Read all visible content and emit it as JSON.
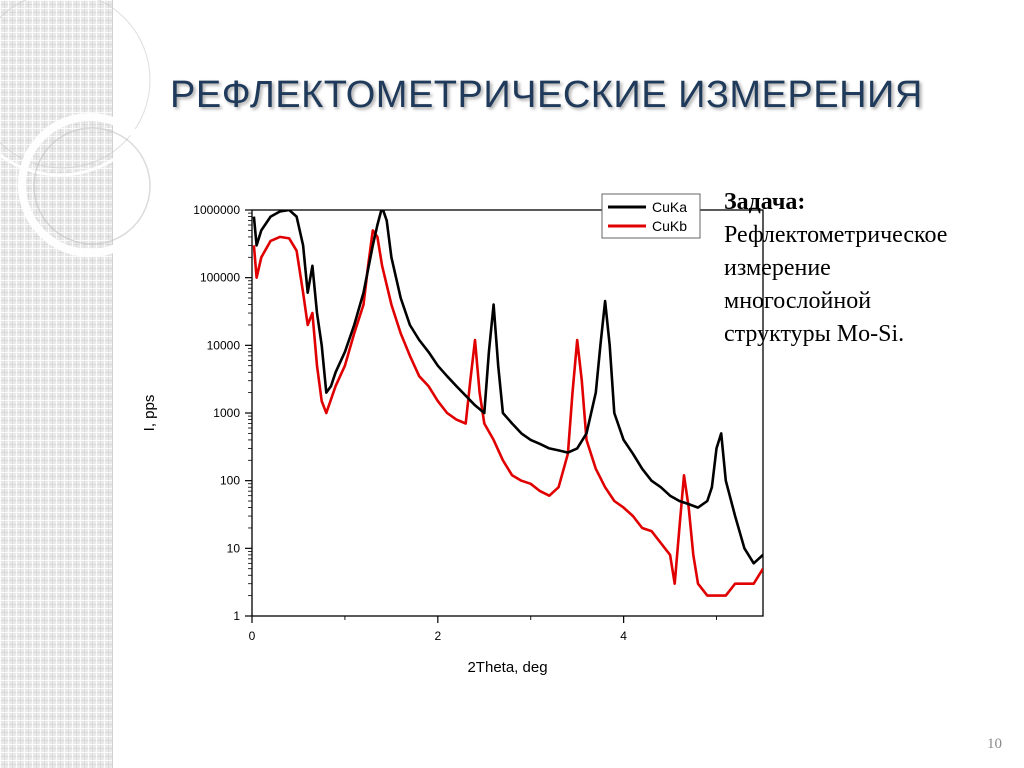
{
  "slide": {
    "title": "РЕФЛЕКТОМЕТРИЧЕСКИЕ ИЗМЕРЕНИЯ",
    "page_number": "10"
  },
  "task": {
    "heading": "Задача:",
    "lines": [
      "Рефлектометрическое",
      "измерение",
      "многослойной",
      "структуры Mo-Si."
    ]
  },
  "chart_data": {
    "type": "line",
    "title": "",
    "xlabel": "2Theta, deg",
    "ylabel": "I, pps",
    "xlim": [
      0,
      5.5
    ],
    "ylim": [
      1,
      1000000
    ],
    "yscale": "log",
    "grid": false,
    "legend_position": "top-right",
    "x_ticks": [
      0,
      2,
      4
    ],
    "x_tick_labels": [
      "0",
      "2",
      "4"
    ],
    "y_ticks": [
      1,
      10,
      100,
      1000,
      10000,
      100000,
      1000000
    ],
    "y_tick_labels": [
      "1",
      "10",
      "100",
      "1000",
      "10000",
      "100000",
      "1000000"
    ],
    "series": [
      {
        "name": "CuKa",
        "color": "#000000",
        "x": [
          0.02,
          0.05,
          0.1,
          0.2,
          0.3,
          0.4,
          0.48,
          0.55,
          0.6,
          0.65,
          0.7,
          0.75,
          0.8,
          0.85,
          0.9,
          1.0,
          1.1,
          1.2,
          1.3,
          1.35,
          1.4,
          1.45,
          1.5,
          1.6,
          1.7,
          1.8,
          1.9,
          2.0,
          2.1,
          2.2,
          2.3,
          2.4,
          2.5,
          2.55,
          2.6,
          2.65,
          2.7,
          2.8,
          2.9,
          3.0,
          3.1,
          3.2,
          3.3,
          3.4,
          3.5,
          3.6,
          3.7,
          3.75,
          3.8,
          3.85,
          3.9,
          4.0,
          4.1,
          4.2,
          4.3,
          4.4,
          4.5,
          4.6,
          4.7,
          4.8,
          4.9,
          4.95,
          5.0,
          5.05,
          5.1,
          5.2,
          5.3,
          5.4,
          5.5
        ],
        "y": [
          800000,
          300000,
          500000,
          800000,
          950000,
          1000000,
          800000,
          300000,
          60000,
          150000,
          30000,
          10000,
          2000,
          2500,
          4000,
          8000,
          20000,
          60000,
          300000,
          600000,
          1100000,
          700000,
          200000,
          50000,
          20000,
          12000,
          8000,
          5000,
          3500,
          2500,
          1800,
          1300,
          1000,
          8000,
          40000,
          5000,
          1000,
          700,
          500,
          400,
          350,
          300,
          280,
          260,
          300,
          500,
          2000,
          10000,
          45000,
          10000,
          1000,
          400,
          250,
          150,
          100,
          80,
          60,
          50,
          45,
          40,
          50,
          80,
          300,
          500,
          100,
          30,
          10,
          6,
          8
        ]
      },
      {
        "name": "CuKb",
        "color": "#e00000",
        "x": [
          0.02,
          0.05,
          0.1,
          0.2,
          0.3,
          0.4,
          0.48,
          0.55,
          0.6,
          0.65,
          0.7,
          0.75,
          0.8,
          0.9,
          1.0,
          1.1,
          1.2,
          1.25,
          1.3,
          1.35,
          1.4,
          1.5,
          1.6,
          1.7,
          1.8,
          1.9,
          2.0,
          2.1,
          2.2,
          2.3,
          2.35,
          2.4,
          2.45,
          2.5,
          2.6,
          2.7,
          2.8,
          2.9,
          3.0,
          3.1,
          3.2,
          3.3,
          3.4,
          3.45,
          3.5,
          3.55,
          3.6,
          3.7,
          3.8,
          3.9,
          4.0,
          4.1,
          4.2,
          4.3,
          4.4,
          4.5,
          4.55,
          4.6,
          4.65,
          4.7,
          4.75,
          4.8,
          4.9,
          5.0,
          5.1,
          5.2,
          5.3,
          5.4,
          5.5
        ],
        "y": [
          300000,
          100000,
          200000,
          350000,
          400000,
          380000,
          250000,
          60000,
          20000,
          30000,
          5000,
          1500,
          1000,
          2500,
          5000,
          15000,
          40000,
          150000,
          500000,
          400000,
          150000,
          40000,
          15000,
          7000,
          3500,
          2500,
          1500,
          1000,
          800,
          700,
          3000,
          12000,
          2000,
          700,
          400,
          200,
          120,
          100,
          90,
          70,
          60,
          80,
          250,
          2000,
          12000,
          3000,
          400,
          150,
          80,
          50,
          40,
          30,
          20,
          18,
          12,
          8,
          3,
          20,
          120,
          40,
          8,
          3,
          2,
          2,
          2,
          3,
          3,
          3,
          5
        ]
      }
    ]
  }
}
